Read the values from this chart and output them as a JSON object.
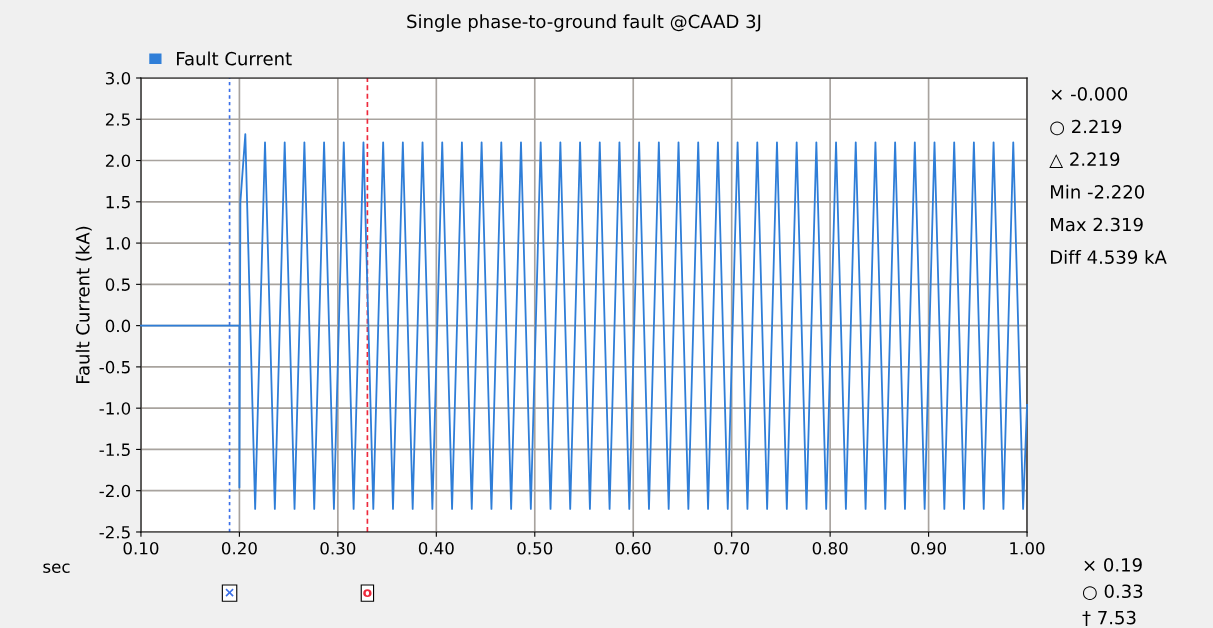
{
  "chart_data": {
    "type": "line",
    "title": "Single phase-to-ground fault @CAAD 3J",
    "xlabel": "sec",
    "ylabel": "Fault Current (kA)",
    "series": [
      {
        "name": "Fault Current",
        "color": "#2f7ed8",
        "x": [
          0.1,
          0.2,
          0.2,
          0.201,
          0.206,
          0.216,
          0.226,
          0.236,
          0.246,
          0.256,
          0.266,
          0.276,
          0.286,
          0.296,
          0.306,
          0.316,
          0.326,
          0.336,
          0.346,
          0.356,
          0.366,
          0.376,
          0.386,
          0.396,
          0.406,
          0.416,
          0.426,
          0.436,
          0.446,
          0.456,
          0.466,
          0.476,
          0.486,
          0.496,
          0.506,
          0.516,
          0.526,
          0.536,
          0.546,
          0.556,
          0.566,
          0.576,
          0.586,
          0.596,
          0.606,
          0.616,
          0.626,
          0.636,
          0.646,
          0.656,
          0.666,
          0.676,
          0.686,
          0.696,
          0.706,
          0.716,
          0.726,
          0.736,
          0.746,
          0.756,
          0.766,
          0.776,
          0.786,
          0.796,
          0.806,
          0.816,
          0.826,
          0.836,
          0.846,
          0.856,
          0.866,
          0.876,
          0.886,
          0.896,
          0.906,
          0.916,
          0.926,
          0.936,
          0.946,
          0.956,
          0.966,
          0.976,
          0.986,
          0.996,
          1.0
        ],
        "values": [
          0,
          0,
          -1.96,
          1.5,
          2.32,
          -2.22,
          2.22,
          -2.22,
          2.22,
          -2.22,
          2.22,
          -2.22,
          2.22,
          -2.22,
          2.22,
          -2.22,
          2.22,
          -2.22,
          2.22,
          -2.22,
          2.22,
          -2.22,
          2.22,
          -2.22,
          2.22,
          -2.22,
          2.22,
          -2.22,
          2.22,
          -2.22,
          2.22,
          -2.22,
          2.22,
          -2.22,
          2.22,
          -2.22,
          2.22,
          -2.22,
          2.22,
          -2.22,
          2.22,
          -2.22,
          2.22,
          -2.22,
          2.22,
          -2.22,
          2.22,
          -2.22,
          2.22,
          -2.22,
          2.22,
          -2.22,
          2.22,
          -2.22,
          2.22,
          -2.22,
          2.22,
          -2.22,
          2.22,
          -2.22,
          2.22,
          -2.22,
          2.22,
          -2.22,
          2.22,
          -2.22,
          2.22,
          -2.22,
          2.22,
          -2.22,
          2.22,
          -2.22,
          2.22,
          -2.22,
          2.22,
          -2.22,
          2.22,
          -2.22,
          2.22,
          -2.22,
          2.22,
          -2.22,
          2.22,
          -2.22,
          -0.96
        ]
      }
    ],
    "xlim": [
      0.1,
      1.0
    ],
    "ylim": [
      -2.5,
      3.0
    ],
    "xticks": [
      {
        "value": 0.1,
        "label": "0.10"
      },
      {
        "value": 0.2,
        "label": "0.20"
      },
      {
        "value": 0.3,
        "label": "0.30"
      },
      {
        "value": 0.4,
        "label": "0.40"
      },
      {
        "value": 0.5,
        "label": "0.50"
      },
      {
        "value": 0.6,
        "label": "0.60"
      },
      {
        "value": 0.7,
        "label": "0.70"
      },
      {
        "value": 0.8,
        "label": "0.80"
      },
      {
        "value": 0.9,
        "label": "0.90"
      },
      {
        "value": 1.0,
        "label": "1.00"
      }
    ],
    "yticks": [
      {
        "value": -2.5,
        "label": "-2.5"
      },
      {
        "value": -2.0,
        "label": "-2.0"
      },
      {
        "value": -1.5,
        "label": "-1.5"
      },
      {
        "value": -1.0,
        "label": "-1.0"
      },
      {
        "value": -0.5,
        "label": "-0.5"
      },
      {
        "value": 0.0,
        "label": "0.0"
      },
      {
        "value": 0.5,
        "label": "0.5"
      },
      {
        "value": 1.0,
        "label": "1.0"
      },
      {
        "value": 1.5,
        "label": "1.5"
      },
      {
        "value": 2.0,
        "label": "2.0"
      },
      {
        "value": 2.5,
        "label": "2.5"
      },
      {
        "value": 3.0,
        "label": "3.0"
      }
    ],
    "ref_lines": [
      {
        "axis": "x",
        "value": 0.19,
        "label": "×",
        "color": "#3a6fe8",
        "line_style": "dotted"
      },
      {
        "axis": "x",
        "value": 0.33,
        "label": "o",
        "color": "#ee2a3c",
        "line_style": "dashed"
      }
    ],
    "annotations": [
      "× -0.000",
      "○ 2.219",
      "△ 2.219",
      "Min -2.220",
      "Max 2.319",
      "Diff 4.539 kA",
      "× 0.19",
      "○ 0.33",
      "† 7.53"
    ],
    "grid": true,
    "legend": "top left",
    "marker": "none",
    "line_style": "solid"
  }
}
